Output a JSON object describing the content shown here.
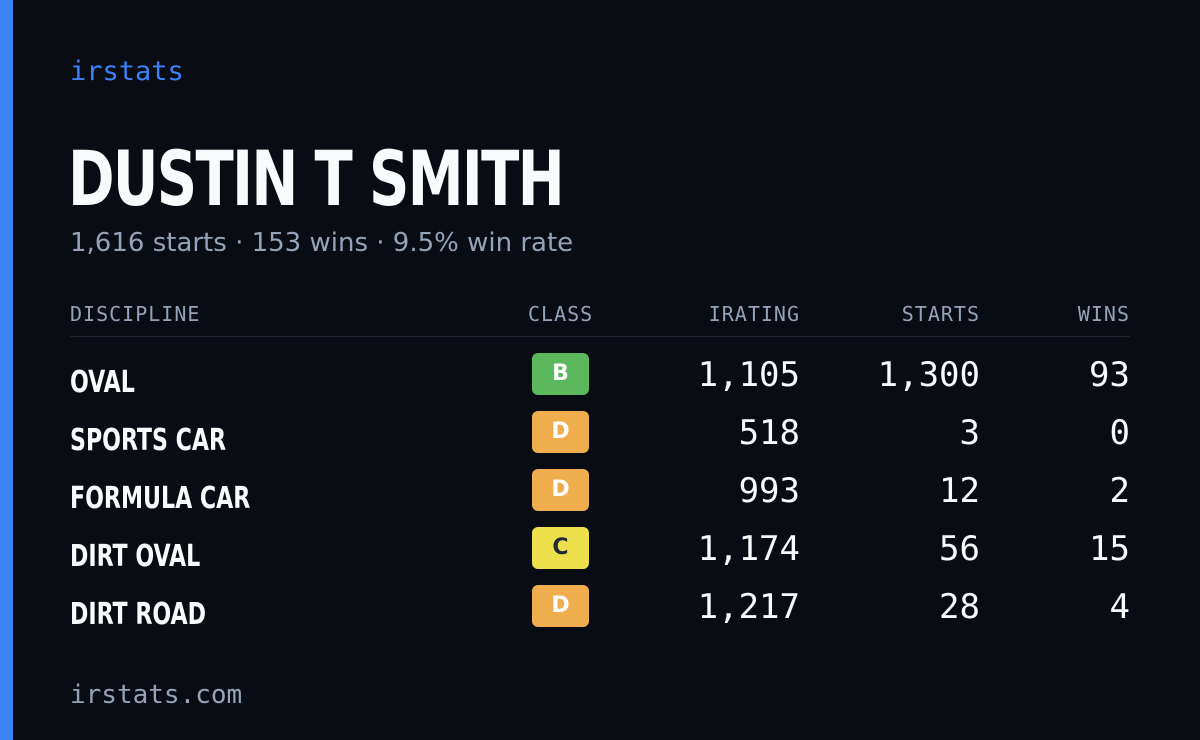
{
  "brand": "irstats",
  "driver": {
    "name": "DUSTIN T SMITH",
    "summary": "1,616 starts · 153 wins · 9.5% win rate"
  },
  "table": {
    "headers": {
      "discipline": "DISCIPLINE",
      "class": "CLASS",
      "irating": "IRATING",
      "starts": "STARTS",
      "wins": "WINS"
    },
    "rows": [
      {
        "discipline": "OVAL",
        "class": "B",
        "class_color": "#5cb85c",
        "class_text_color": "#ffffff",
        "irating": "1,105",
        "starts": "1,300",
        "wins": "93"
      },
      {
        "discipline": "SPORTS CAR",
        "class": "D",
        "class_color": "#f0ad4e",
        "class_text_color": "#ffffff",
        "irating": "518",
        "starts": "3",
        "wins": "0"
      },
      {
        "discipline": "FORMULA CAR",
        "class": "D",
        "class_color": "#f0ad4e",
        "class_text_color": "#ffffff",
        "irating": "993",
        "starts": "12",
        "wins": "2"
      },
      {
        "discipline": "DIRT OVAL",
        "class": "C",
        "class_color": "#ede04a",
        "class_text_color": "#1f2937",
        "irating": "1,174",
        "starts": "56",
        "wins": "15"
      },
      {
        "discipline": "DIRT ROAD",
        "class": "D",
        "class_color": "#f0ad4e",
        "class_text_color": "#ffffff",
        "irating": "1,217",
        "starts": "28",
        "wins": "4"
      }
    ]
  },
  "footer": "irstats.com",
  "colors": {
    "accent": "#3b82f6",
    "background": "#0a0c13",
    "muted_text": "#94a3b8",
    "text": "#f8fafc"
  }
}
